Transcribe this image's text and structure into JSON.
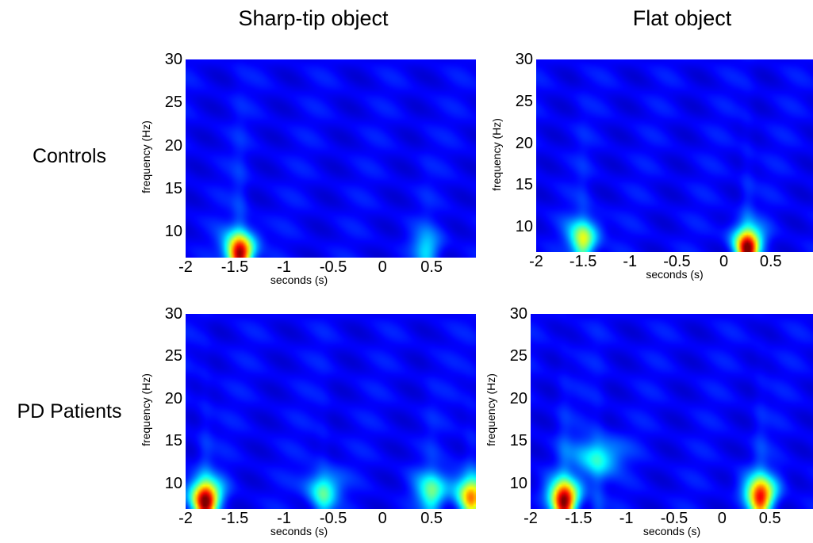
{
  "column_titles": [
    "Sharp-tip object",
    "Flat object"
  ],
  "row_labels": [
    "Controls",
    "PD Patients"
  ],
  "chart_data": [
    {
      "type": "heatmap",
      "row": "Controls",
      "column": "Sharp-tip object",
      "xlabel": "seconds (s)",
      "ylabel": "frequency (Hz)",
      "xlim": [
        -2,
        0.95
      ],
      "ylim": [
        7,
        30
      ],
      "xticks": [
        -2,
        -1.5,
        -1,
        -0.5,
        0,
        0.5
      ],
      "yticks": [
        10,
        15,
        20,
        25,
        30
      ],
      "colormap": "jet",
      "hotspots": [
        {
          "t": -1.45,
          "f": 7.5,
          "intensity": 1.0
        },
        {
          "t": 0.45,
          "f": 8.0,
          "intensity": 0.25
        }
      ]
    },
    {
      "type": "heatmap",
      "row": "Controls",
      "column": "Flat object",
      "xlabel": "seconds (s)",
      "ylabel": "frequency (Hz)",
      "xlim": [
        -2,
        0.95
      ],
      "ylim": [
        7,
        30
      ],
      "xticks": [
        -2,
        -1.5,
        -1,
        -0.5,
        0,
        0.5
      ],
      "yticks": [
        10,
        15,
        20,
        25,
        30
      ],
      "colormap": "jet",
      "hotspots": [
        {
          "t": -1.5,
          "f": 8.5,
          "intensity": 0.55
        },
        {
          "t": 0.25,
          "f": 7.5,
          "intensity": 1.0
        }
      ]
    },
    {
      "type": "heatmap",
      "row": "PD Patients",
      "column": "Sharp-tip object",
      "xlabel": "seconds (s)",
      "ylabel": "frequency (Hz)",
      "xlim": [
        -2,
        0.95
      ],
      "ylim": [
        7,
        30
      ],
      "xticks": [
        -2,
        -1.5,
        -1,
        -0.5,
        0,
        0.5
      ],
      "yticks": [
        10,
        15,
        20,
        25,
        30
      ],
      "colormap": "jet",
      "hotspots": [
        {
          "t": -1.8,
          "f": 8.0,
          "intensity": 1.0
        },
        {
          "t": -0.6,
          "f": 9.0,
          "intensity": 0.4
        },
        {
          "t": 0.5,
          "f": 9.0,
          "intensity": 0.4
        },
        {
          "t": 0.9,
          "f": 8.5,
          "intensity": 0.7
        }
      ]
    },
    {
      "type": "heatmap",
      "row": "PD Patients",
      "column": "Flat object",
      "xlabel": "seconds (s)",
      "ylabel": "frequency (Hz)",
      "xlim": [
        -2,
        0.95
      ],
      "ylim": [
        7,
        30
      ],
      "xticks": [
        -2,
        -1.5,
        -1,
        -0.5,
        0,
        0.5
      ],
      "yticks": [
        10,
        15,
        20,
        25,
        30
      ],
      "colormap": "jet",
      "hotspots": [
        {
          "t": -1.65,
          "f": 8.0,
          "intensity": 1.0
        },
        {
          "t": 0.4,
          "f": 8.5,
          "intensity": 0.85
        },
        {
          "t": -1.3,
          "f": 13.0,
          "intensity": 0.35
        }
      ]
    }
  ]
}
